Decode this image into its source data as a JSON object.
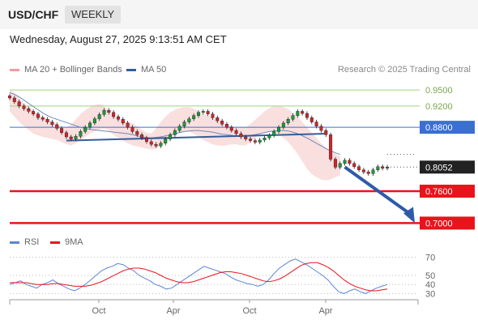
{
  "header": {
    "symbol": "USD/CHF",
    "timeframe_tab": "WEEKLY",
    "datetime": "Wednesday, August 27, 2025 9:13:51 AM CET"
  },
  "legend": {
    "bollinger_label": "MA 20 + Bollinger Bands",
    "ma50_label": "MA 50",
    "credit": "Research © 2025 Trading Central",
    "colors": {
      "bollinger": "#f49b9b",
      "ma50": "#355c9a"
    }
  },
  "rsi_legend": {
    "rsi_label": "RSI",
    "ma9_label": "9MA",
    "colors": {
      "rsi": "#5b86d6",
      "ma9": "#e8141c"
    }
  },
  "chart_data": [
    {
      "type": "line",
      "title": "USD/CHF",
      "x_ticks": [
        "Oct",
        "Apr",
        "Oct",
        "Apr"
      ],
      "ylim": [
        0.69,
        0.97
      ],
      "price_levels": [
        {
          "value": 0.95,
          "label": "0.9500",
          "style": "thin-green"
        },
        {
          "value": 0.92,
          "label": "0.9200",
          "style": "thin-green"
        },
        {
          "value": 0.88,
          "label": "0.8800",
          "style": "resistance-blue"
        },
        {
          "value": 0.8052,
          "label": "0.8052",
          "style": "last-price"
        },
        {
          "value": 0.76,
          "label": "0.7600",
          "style": "support-red"
        },
        {
          "value": 0.7,
          "label": "0.7000",
          "style": "support-red"
        }
      ],
      "series": [
        {
          "name": "USD/CHF",
          "values": [
            0.935,
            0.928,
            0.92,
            0.915,
            0.91,
            0.905,
            0.898,
            0.895,
            0.89,
            0.885,
            0.878,
            0.87,
            0.862,
            0.858,
            0.863,
            0.872,
            0.88,
            0.888,
            0.896,
            0.904,
            0.912,
            0.908,
            0.9,
            0.895,
            0.888,
            0.88,
            0.872,
            0.866,
            0.86,
            0.853,
            0.848,
            0.845,
            0.85,
            0.858,
            0.866,
            0.874,
            0.882,
            0.89,
            0.896,
            0.902,
            0.908,
            0.91,
            0.905,
            0.898,
            0.892,
            0.886,
            0.88,
            0.874,
            0.868,
            0.862,
            0.858,
            0.855,
            0.852,
            0.856,
            0.86,
            0.865,
            0.872,
            0.88,
            0.888,
            0.895,
            0.902,
            0.91,
            0.906,
            0.898,
            0.89,
            0.882,
            0.874,
            0.866,
            0.82,
            0.805,
            0.812,
            0.818,
            0.812,
            0.806,
            0.8,
            0.796,
            0.793,
            0.8,
            0.806,
            0.803,
            0.8052
          ]
        }
      ],
      "bollinger_band": {
        "upper": [
          0.95,
          0.945,
          0.935,
          0.925,
          0.918,
          0.91,
          0.905,
          0.9,
          0.895,
          0.89,
          0.885,
          0.88,
          0.88,
          0.885,
          0.895,
          0.905,
          0.912,
          0.918,
          0.922,
          0.924,
          0.92,
          0.91,
          0.902,
          0.895,
          0.892,
          0.89,
          0.888,
          0.882,
          0.875,
          0.87,
          0.868,
          0.878,
          0.89,
          0.9,
          0.908,
          0.913,
          0.916,
          0.918,
          0.918,
          0.915,
          0.91,
          0.905,
          0.902,
          0.898,
          0.893,
          0.888,
          0.884,
          0.882,
          0.88,
          0.88,
          0.88,
          0.886,
          0.894,
          0.902,
          0.91,
          0.916,
          0.92,
          0.92,
          0.918,
          0.914,
          0.908,
          0.9,
          0.89,
          0.88,
          0.87,
          0.86,
          0.85,
          0.842,
          0.836,
          0.83,
          0.825
        ],
        "lower": [
          0.91,
          0.9,
          0.89,
          0.882,
          0.875,
          0.868,
          0.865,
          0.862,
          0.86,
          0.858,
          0.856,
          0.852,
          0.848,
          0.846,
          0.85,
          0.856,
          0.862,
          0.868,
          0.872,
          0.876,
          0.878,
          0.874,
          0.866,
          0.86,
          0.855,
          0.85,
          0.846,
          0.844,
          0.842,
          0.84,
          0.838,
          0.84,
          0.845,
          0.852,
          0.86,
          0.866,
          0.87,
          0.872,
          0.872,
          0.868,
          0.862,
          0.856,
          0.852,
          0.848,
          0.846,
          0.845,
          0.846,
          0.848,
          0.848,
          0.846,
          0.846,
          0.852,
          0.86,
          0.866,
          0.87,
          0.872,
          0.87,
          0.866,
          0.86,
          0.852,
          0.842,
          0.83,
          0.816,
          0.802,
          0.792,
          0.786,
          0.782,
          0.78,
          0.782,
          0.786,
          0.79
        ]
      },
      "ma50": [
        0.945,
        0.942,
        0.937,
        0.931,
        0.925,
        0.919,
        0.913,
        0.907,
        0.902,
        0.898,
        0.895,
        0.892,
        0.889,
        0.886,
        0.883,
        0.88,
        0.878,
        0.876,
        0.875,
        0.874,
        0.873,
        0.872,
        0.871,
        0.87,
        0.869,
        0.868,
        0.866,
        0.864,
        0.862,
        0.861,
        0.86,
        0.861,
        0.862,
        0.864,
        0.866,
        0.868,
        0.87,
        0.872,
        0.873,
        0.874,
        0.874,
        0.873,
        0.872,
        0.871,
        0.869,
        0.867,
        0.866,
        0.865,
        0.864,
        0.864,
        0.864,
        0.865,
        0.866,
        0.868,
        0.87,
        0.872,
        0.873,
        0.874,
        0.874,
        0.873,
        0.871,
        0.868,
        0.864,
        0.86,
        0.855,
        0.85,
        0.845,
        0.84,
        0.836,
        0.832,
        0.829
      ],
      "trendlines": [
        {
          "from": [
            12,
            0.855
          ],
          "to": [
            67,
            0.868
          ],
          "color": "#355c9a"
        }
      ],
      "projection_arrow": {
        "from": [
          71,
          0.8052
        ],
        "to": [
          80,
          0.7
        ]
      }
    },
    {
      "type": "line",
      "title": "RSI",
      "y_ticks": [
        70,
        50,
        40,
        30
      ],
      "ylim": [
        25,
        75
      ],
      "x_ticks": [
        "Oct",
        "Apr",
        "Oct",
        "Apr"
      ],
      "series": [
        {
          "name": "RSI",
          "values": [
            40,
            42,
            44,
            40,
            38,
            36,
            40,
            42,
            45,
            41,
            38,
            35,
            33,
            36,
            40,
            45,
            50,
            55,
            58,
            60,
            63,
            62,
            58,
            55,
            50,
            47,
            44,
            40,
            38,
            35,
            36,
            40,
            44,
            48,
            52,
            56,
            60,
            58,
            56,
            54,
            52,
            48,
            45,
            43,
            41,
            40,
            38,
            40,
            45,
            52,
            58,
            62,
            66,
            68,
            65,
            62,
            58,
            54,
            50,
            45,
            38,
            32,
            30,
            33,
            35,
            32,
            30,
            33,
            36,
            38,
            40
          ]
        },
        {
          "name": "9MA",
          "values": [
            42,
            42,
            42,
            42,
            41,
            40,
            40,
            40,
            41,
            41,
            40,
            39,
            38,
            38,
            38,
            39,
            41,
            43,
            46,
            49,
            52,
            55,
            57,
            58,
            58,
            57,
            55,
            53,
            50,
            47,
            45,
            43,
            42,
            42,
            43,
            45,
            47,
            49,
            51,
            53,
            54,
            54,
            53,
            52,
            50,
            48,
            46,
            44,
            43,
            44,
            46,
            49,
            53,
            57,
            61,
            63,
            64,
            64,
            62,
            59,
            55,
            50,
            45,
            41,
            38,
            36,
            34,
            33,
            33,
            34,
            35
          ]
        }
      ]
    }
  ]
}
